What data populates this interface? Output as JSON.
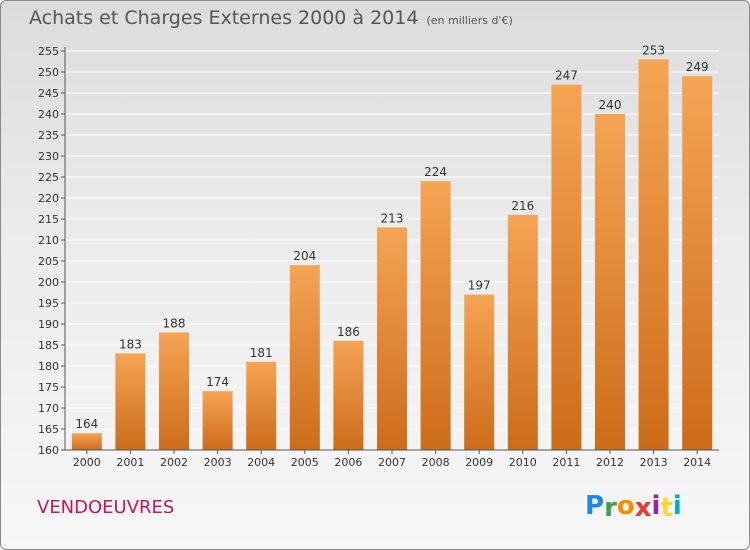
{
  "header": {
    "title": "Achats et Charges Externes 2000 à 2014",
    "subtitle": "(en milliers d'€)"
  },
  "footer": {
    "city": "VENDOEUVRES",
    "logo_letters": [
      "P",
      "r",
      "o",
      "x",
      "i",
      "t",
      "i"
    ],
    "logo_colors": [
      "#1e88e5",
      "#43a047",
      "#fb8c00",
      "#e53935",
      "#8e24aa",
      "#fdd835",
      "#00acc1"
    ]
  },
  "colors": {
    "bar_light": "#f5a455",
    "bar_dark": "#cc6c1a",
    "grid": "#ffffff",
    "axis_text": "#333333"
  },
  "chart_data": {
    "type": "bar",
    "title": "Achats et Charges Externes 2000 à 2014",
    "subtitle": "(en milliers d'€)",
    "categories": [
      "2000",
      "2001",
      "2002",
      "2003",
      "2004",
      "2005",
      "2006",
      "2007",
      "2008",
      "2009",
      "2010",
      "2011",
      "2012",
      "2013",
      "2014"
    ],
    "values": [
      164,
      183,
      188,
      174,
      181,
      204,
      186,
      213,
      224,
      197,
      216,
      247,
      240,
      253,
      249
    ],
    "ylim": [
      160,
      255
    ],
    "yticks": [
      160,
      165,
      170,
      175,
      180,
      185,
      190,
      195,
      200,
      205,
      210,
      215,
      220,
      225,
      230,
      235,
      240,
      245,
      250,
      255
    ],
    "grid": true,
    "data_labels": true
  }
}
